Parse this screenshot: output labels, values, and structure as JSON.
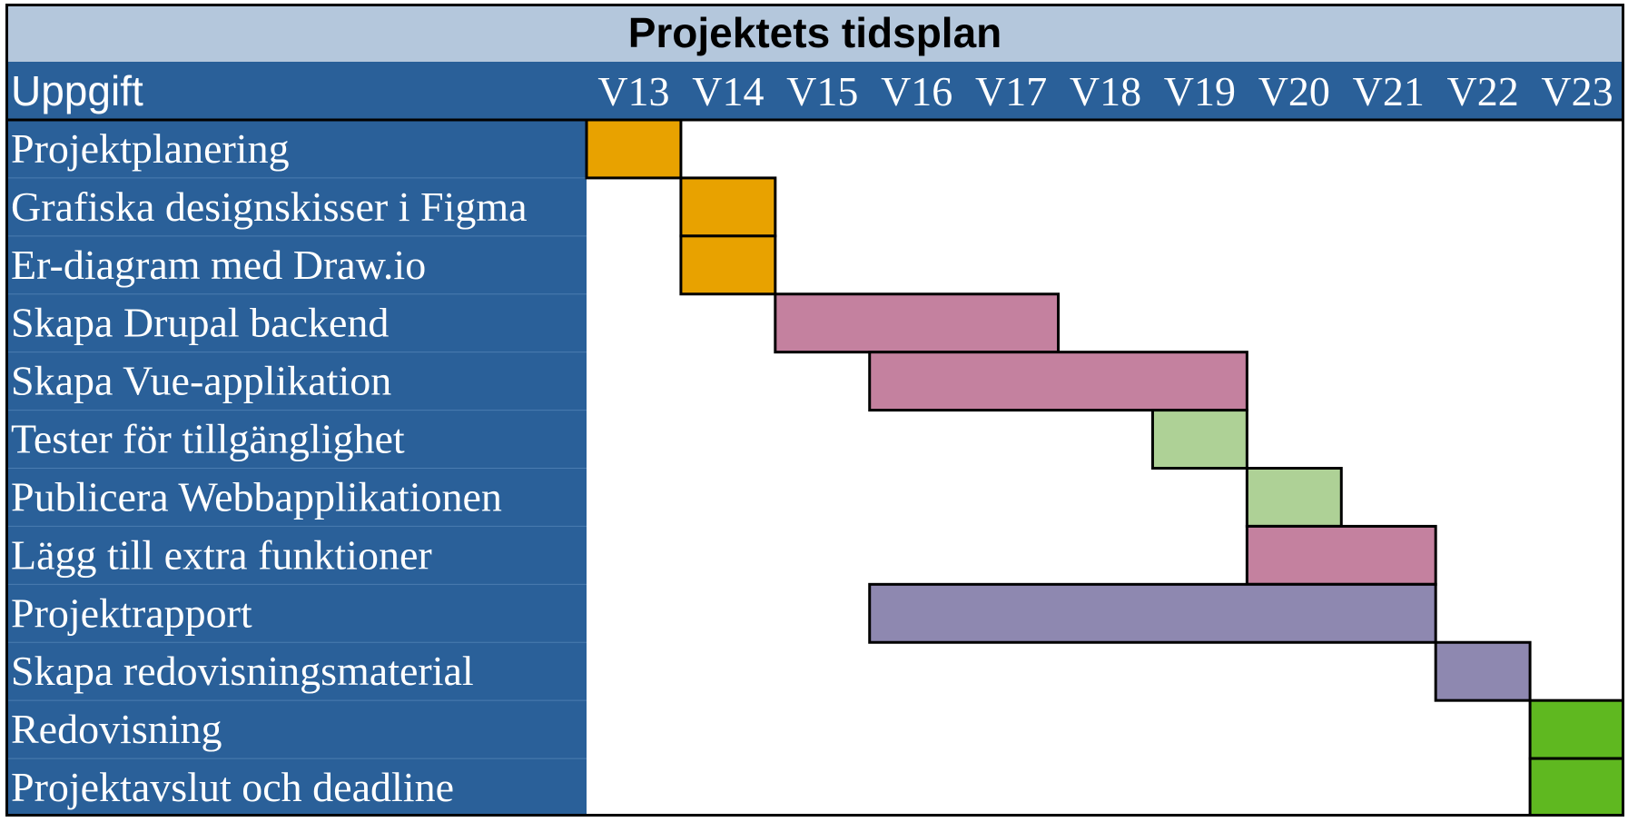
{
  "chart_data": {
    "type": "gantt",
    "title": "Projektets tidsplan",
    "task_column_header": "Uppgift",
    "weeks": [
      "V13",
      "V14",
      "V15",
      "V16",
      "V17",
      "V18",
      "V19",
      "V20",
      "V21",
      "V22",
      "V23"
    ],
    "tasks": [
      {
        "name": "Projektplanering",
        "start": "V13",
        "end": "V13",
        "color": "#e8a200"
      },
      {
        "name": "Grafiska designskisser i Figma",
        "start": "V14",
        "end": "V14",
        "color": "#e8a200"
      },
      {
        "name": "Er-diagram med Draw.io",
        "start": "V14",
        "end": "V14",
        "color": "#e8a200"
      },
      {
        "name": "Skapa Drupal backend",
        "start": "V15",
        "end": "V17",
        "color": "#c4819f"
      },
      {
        "name": "Skapa Vue-applikation",
        "start": "V16",
        "end": "V19",
        "color": "#c4819f"
      },
      {
        "name": "Tester för tillgänglighet",
        "start": "V19",
        "end": "V19",
        "color": "#aed196"
      },
      {
        "name": "Publicera Webbapplikationen",
        "start": "V20",
        "end": "V20",
        "color": "#aed196"
      },
      {
        "name": "Lägg till extra funktioner",
        "start": "V20",
        "end": "V21",
        "color": "#c4819f"
      },
      {
        "name": "Projektrapport",
        "start": "V16",
        "end": "V21",
        "color": "#8e88b0"
      },
      {
        "name": "Skapa redovisningsmaterial",
        "start": "V22",
        "end": "V22",
        "color": "#8e88b0"
      },
      {
        "name": "Redovisning",
        "start": "V23",
        "end": "V23",
        "color": "#5fb820"
      },
      {
        "name": "Projektavslut och deadline",
        "start": "V23",
        "end": "V23",
        "color": "#5fb820"
      }
    ],
    "colors": {
      "title_band": "#b4c7dc",
      "header_band": "#2a6099",
      "task_column": "#2a6099",
      "grid_background": "#ffffff",
      "border": "#000000"
    }
  }
}
